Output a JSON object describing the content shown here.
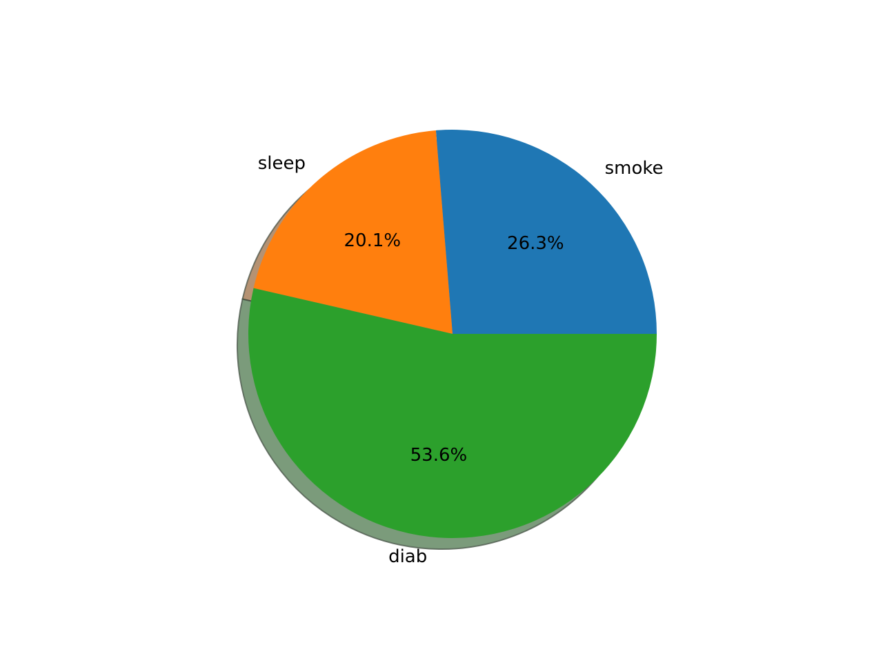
{
  "chart_data": {
    "type": "pie",
    "shadow": true,
    "start_angle": 0,
    "direction": "counterclockwise",
    "slices": [
      {
        "label": "smoke",
        "value": 26.3,
        "pct_label": "26.3%",
        "color": "#1f77b4"
      },
      {
        "label": "sleep",
        "value": 20.1,
        "pct_label": "20.1%",
        "color": "#ff7f0e"
      },
      {
        "label": "diab",
        "value": 53.6,
        "pct_label": "53.6%",
        "color": "#2ca02c"
      }
    ]
  }
}
